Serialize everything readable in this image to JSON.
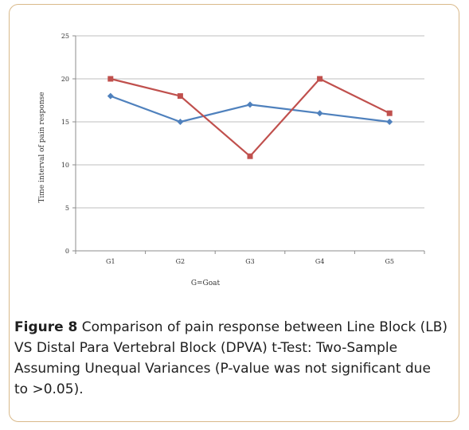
{
  "chart_data": {
    "type": "line",
    "categories": [
      "G1",
      "G2",
      "G3",
      "G4",
      "G5"
    ],
    "series": [
      {
        "values": [
          18,
          15,
          17,
          16,
          15
        ],
        "color": "#4f81bd",
        "marker": "diamond"
      },
      {
        "values": [
          20,
          18,
          11,
          20,
          16
        ],
        "color": "#c0504d",
        "marker": "square"
      }
    ],
    "xlabel": "G=Goat",
    "ylabel": "Time interval of pain response",
    "ylim": [
      0,
      25
    ],
    "yticks": [
      "0",
      "5",
      "10",
      "15",
      "20",
      "25"
    ],
    "grid": true
  },
  "caption": {
    "label": "Figure 8",
    "text": " Comparison of pain response between Line Block (LB) VS Distal Para Vertebral Block (DPVA) t-Test: Two-Sample Assuming Unequal Variances (P-value was not significant due to >0.05)."
  },
  "colors": {
    "frame_border": "#d9b98a",
    "grid": "#bfbfbf"
  }
}
